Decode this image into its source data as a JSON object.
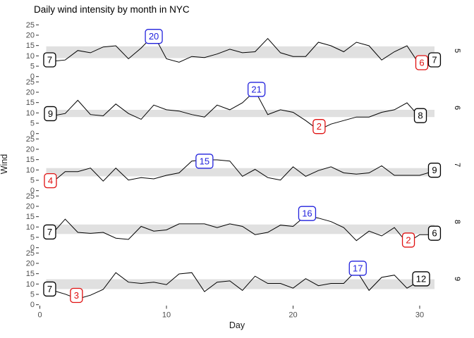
{
  "title": "Daily wind intensity by month in NYC",
  "axes": {
    "x_title": "Day",
    "y_title": "Wind",
    "x_ticks": [
      0,
      10,
      20,
      30
    ],
    "y_ticks": [
      0,
      5,
      10,
      15,
      20,
      25
    ]
  },
  "colors": {
    "line": "#000000",
    "band": "#e0e0e0",
    "tick_text": "#4d4d4d",
    "tick_mark": "#333333",
    "label_black": "#000000",
    "label_blue": "#2222dd",
    "label_red": "#e01010",
    "strip_text": "#000000",
    "title_text": "#000000",
    "label_fill": "#ffffff"
  },
  "chart_data": {
    "type": "line",
    "title": "Daily wind intensity by month in NYC",
    "xlabel": "Day",
    "ylabel": "Wind",
    "x_ticks": [
      0,
      10,
      20,
      30
    ],
    "y_ticks": [
      0,
      5,
      10,
      15,
      20,
      25
    ],
    "ylim": [
      0,
      25
    ],
    "grid": false,
    "facet_note": "five stacked facets by month, strip labels on right, gray band = interquartile range of wind for that month",
    "facets": [
      {
        "month": "5",
        "wind": [
          7.4,
          8.0,
          12.6,
          11.5,
          14.3,
          14.9,
          8.6,
          13.8,
          20.1,
          8.6,
          6.9,
          9.7,
          9.2,
          10.9,
          13.2,
          11.5,
          12.0,
          18.4,
          11.5,
          9.7,
          9.7,
          16.6,
          14.9,
          12.0,
          16.6,
          14.9,
          8.0,
          12.0,
          14.9,
          5.7,
          7.4
        ],
        "band": [
          8.9,
          14.6
        ],
        "labels": [
          {
            "text": "7",
            "day": 1,
            "value": 7.4,
            "color": "black",
            "role": "first",
            "nudge": [
              -4,
              -2
            ]
          },
          {
            "text": "20",
            "day": 9,
            "value": 20.1,
            "color": "blue",
            "role": "max",
            "nudge": [
              0,
              2
            ]
          },
          {
            "text": "6",
            "day": 30,
            "value": 5.7,
            "color": "red",
            "role": "min",
            "nudge": [
              3,
              -3
            ]
          },
          {
            "text": "7",
            "day": 31,
            "value": 7.4,
            "color": "black",
            "role": "last",
            "nudge": [
              3,
              -2
            ]
          }
        ]
      },
      {
        "month": "6",
        "wind": [
          8.6,
          9.7,
          16.1,
          9.2,
          8.6,
          14.3,
          9.7,
          6.9,
          13.8,
          11.5,
          10.9,
          9.2,
          8.0,
          13.8,
          11.5,
          14.9,
          20.7,
          9.2,
          11.5,
          10.3,
          6.3,
          1.7,
          4.6,
          6.3,
          8.0,
          8.0,
          10.3,
          11.5,
          14.9,
          8.0
        ],
        "band": [
          8.0,
          11.5
        ],
        "labels": [
          {
            "text": "9",
            "day": 1,
            "value": 8.6,
            "color": "black",
            "role": "first",
            "nudge": [
              -3,
              -3
            ]
          },
          {
            "text": "21",
            "day": 17,
            "value": 20.7,
            "color": "blue",
            "role": "max",
            "nudge": [
              2,
              -2
            ]
          },
          {
            "text": "2",
            "day": 22,
            "value": 1.7,
            "color": "red",
            "role": "min",
            "nudge": [
              1,
              -5
            ]
          },
          {
            "text": "8",
            "day": 30,
            "value": 8.0,
            "color": "black",
            "role": "last",
            "nudge": [
              1,
              -2
            ]
          }
        ]
      },
      {
        "month": "7",
        "wind": [
          4.1,
          9.2,
          9.2,
          10.9,
          4.6,
          10.9,
          5.1,
          6.3,
          5.7,
          7.4,
          8.6,
          14.3,
          14.9,
          14.9,
          14.3,
          6.9,
          10.3,
          6.3,
          5.1,
          11.5,
          6.9,
          9.7,
          11.5,
          8.6,
          8.0,
          8.6,
          12.0,
          7.4,
          7.4,
          7.4,
          9.2
        ],
        "band": [
          6.9,
          10.9
        ],
        "labels": [
          {
            "text": "4",
            "day": 1,
            "value": 4.1,
            "color": "red",
            "role": "min",
            "nudge": [
              -3,
              -2
            ]
          },
          {
            "text": "15",
            "day": 13,
            "value": 14.9,
            "color": "blue",
            "role": "max",
            "nudge": [
              0,
              2
            ]
          },
          {
            "text": "9",
            "day": 31,
            "value": 9.2,
            "color": "black",
            "role": "last",
            "nudge": [
              3,
              -2
            ]
          }
        ]
      },
      {
        "month": "8",
        "wind": [
          6.9,
          13.8,
          7.4,
          6.9,
          7.4,
          4.6,
          4.0,
          10.3,
          8.0,
          8.6,
          11.5,
          11.5,
          11.5,
          9.7,
          11.5,
          10.3,
          6.3,
          7.4,
          10.9,
          10.3,
          15.5,
          14.3,
          12.6,
          9.7,
          3.4,
          8.0,
          5.7,
          9.7,
          2.3,
          6.3,
          6.3
        ],
        "band": [
          6.6,
          11.2
        ],
        "labels": [
          {
            "text": "7",
            "day": 1,
            "value": 6.9,
            "color": "black",
            "role": "first",
            "nudge": [
              -4,
              -2
            ]
          },
          {
            "text": "16",
            "day": 21,
            "value": 15.5,
            "color": "blue",
            "role": "max",
            "nudge": [
              2,
              -3
            ]
          },
          {
            "text": "2",
            "day": 29,
            "value": 2.3,
            "color": "red",
            "role": "min",
            "nudge": [
              2,
              -4
            ]
          },
          {
            "text": "6",
            "day": 31,
            "value": 6.3,
            "color": "black",
            "role": "last",
            "nudge": [
              3,
              -2
            ]
          }
        ]
      },
      {
        "month": "9",
        "wind": [
          6.9,
          5.1,
          2.8,
          4.6,
          7.4,
          15.5,
          10.9,
          10.3,
          10.9,
          9.7,
          14.9,
          15.5,
          6.3,
          10.9,
          11.5,
          6.9,
          13.8,
          10.3,
          10.3,
          8.0,
          12.6,
          9.2,
          10.3,
          10.3,
          16.6,
          6.9,
          13.2,
          14.3,
          8.0,
          11.5
        ],
        "band": [
          7.55,
          12.33
        ],
        "labels": [
          {
            "text": "7",
            "day": 1,
            "value": 6.9,
            "color": "black",
            "role": "first",
            "nudge": [
              -4,
              -2
            ]
          },
          {
            "text": "3",
            "day": 3,
            "value": 2.8,
            "color": "red",
            "role": "min",
            "nudge": [
              -2,
              -5
            ]
          },
          {
            "text": "17",
            "day": 25,
            "value": 16.6,
            "color": "blue",
            "role": "max",
            "nudge": [
              2,
              -3
            ]
          },
          {
            "text": "12",
            "day": 30,
            "value": 11.5,
            "color": "black",
            "role": "last",
            "nudge": [
              2,
              -3
            ]
          }
        ]
      }
    ]
  }
}
